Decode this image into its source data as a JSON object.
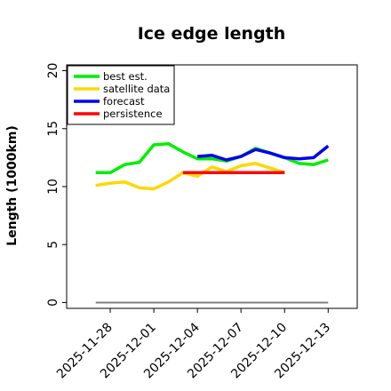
{
  "chart_data": {
    "type": "line",
    "title": "Ice edge length",
    "xlabel": "",
    "ylabel": "Length (1000km)",
    "ylim": [
      -0.5,
      20.5
    ],
    "yticks": [
      0,
      5,
      10,
      15,
      20
    ],
    "xlim": [
      "2025-11-25",
      "2025-12-15"
    ],
    "xticks": [
      "2025-11-28",
      "2025-12-01",
      "2025-12-04",
      "2025-12-07",
      "2025-12-10",
      "2025-12-13"
    ],
    "highlight_tick": "2025-12-04",
    "highlight_color": "#228B22",
    "grid": false,
    "legend_position": "top-left",
    "baseline": {
      "y": 0,
      "x_range": [
        "2025-11-27",
        "2025-12-13"
      ],
      "color": "#808080"
    },
    "series": [
      {
        "name": "best est.",
        "color": "#00ee00",
        "x": [
          "2025-11-27",
          "2025-11-28",
          "2025-11-29",
          "2025-11-30",
          "2025-12-01",
          "2025-12-02",
          "2025-12-03",
          "2025-12-04",
          "2025-12-05",
          "2025-12-06",
          "2025-12-07",
          "2025-12-08",
          "2025-12-09",
          "2025-12-10",
          "2025-12-11",
          "2025-12-12",
          "2025-12-13"
        ],
        "y": [
          11.2,
          11.2,
          11.9,
          12.1,
          13.6,
          13.7,
          13.0,
          12.4,
          12.4,
          12.2,
          12.6,
          13.3,
          12.9,
          12.5,
          12.0,
          11.9,
          12.3
        ]
      },
      {
        "name": "satellite data",
        "color": "#ffd700",
        "x": [
          "2025-11-27",
          "2025-11-28",
          "2025-11-29",
          "2025-11-30",
          "2025-12-01",
          "2025-12-02",
          "2025-12-03",
          "2025-12-04",
          "2025-12-05",
          "2025-12-06",
          "2025-12-07",
          "2025-12-08",
          "2025-12-09",
          "2025-12-10"
        ],
        "y": [
          10.1,
          10.3,
          10.4,
          9.9,
          9.8,
          10.4,
          11.2,
          10.9,
          11.7,
          11.3,
          11.8,
          12.0,
          11.6,
          11.2
        ]
      },
      {
        "name": "forecast",
        "color": "#0000ee",
        "x": [
          "2025-12-04",
          "2025-12-05",
          "2025-12-06",
          "2025-12-07",
          "2025-12-08",
          "2025-12-09",
          "2025-12-10",
          "2025-12-11",
          "2025-12-12",
          "2025-12-13"
        ],
        "y": [
          12.6,
          12.7,
          12.3,
          12.6,
          13.2,
          12.9,
          12.5,
          12.4,
          12.5,
          13.5
        ]
      },
      {
        "name": "persistence",
        "color": "#ff0000",
        "x": [
          "2025-12-03",
          "2025-12-04",
          "2025-12-05",
          "2025-12-06",
          "2025-12-07",
          "2025-12-08",
          "2025-12-09",
          "2025-12-10"
        ],
        "y": [
          11.2,
          11.2,
          11.2,
          11.2,
          11.2,
          11.2,
          11.2,
          11.2
        ]
      }
    ]
  }
}
